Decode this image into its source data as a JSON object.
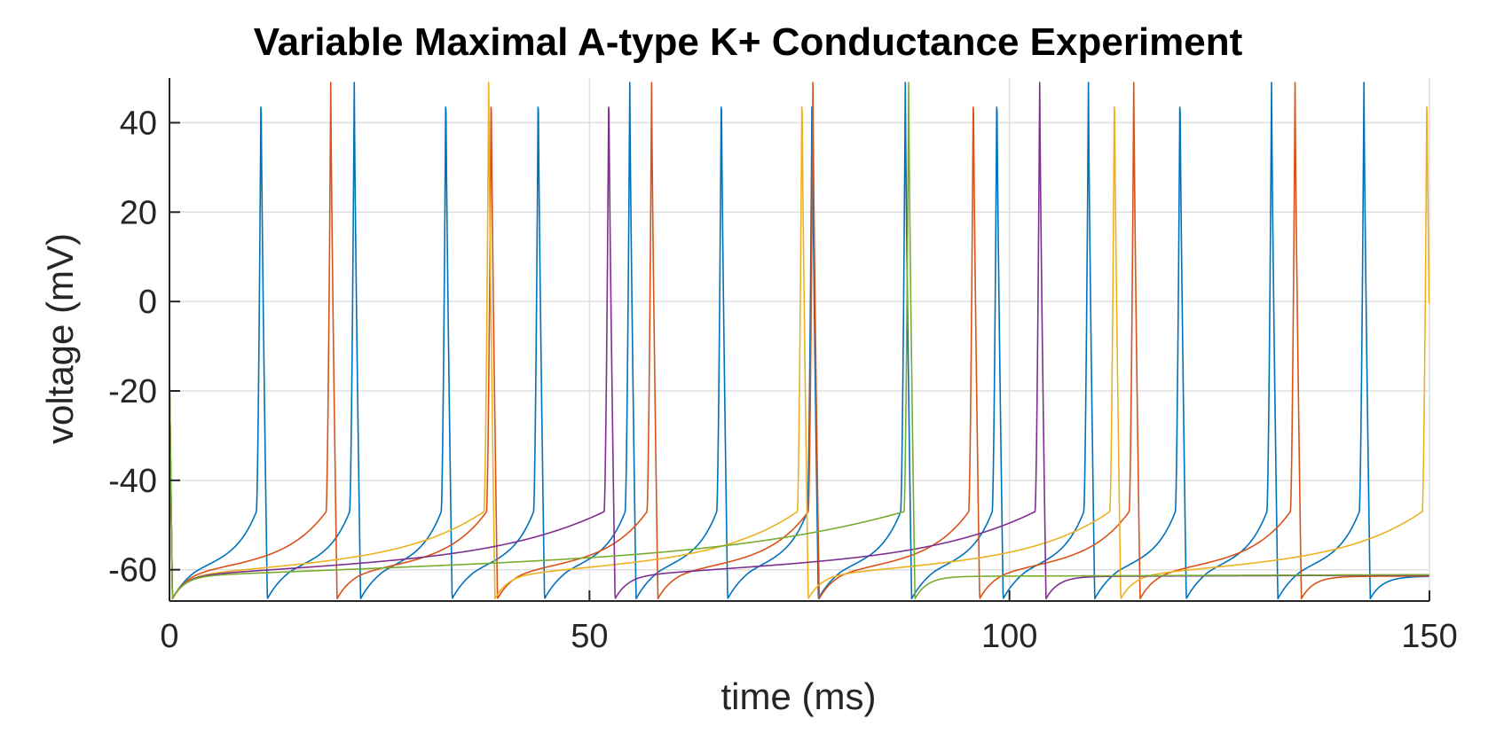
{
  "chart_data": {
    "type": "line",
    "title": "Variable Maximal A-type K+ Conductance Experiment",
    "xlabel": "time (ms)",
    "ylabel": "voltage (mV)",
    "xlim": [
      0,
      150
    ],
    "ylim": [
      -67,
      50
    ],
    "xticks": [
      0,
      50,
      100,
      150
    ],
    "yticks": [
      -60,
      -40,
      -20,
      0,
      20,
      40
    ],
    "grid": true,
    "legend": "none",
    "v_rest_min": -66.5,
    "v_peak": 49,
    "series": [
      {
        "color": "#0072BD",
        "spike_times": [
          10.9,
          22.0,
          32.9,
          43.9,
          54.8,
          65.7,
          76.5,
          87.6,
          98.5,
          109.4,
          120.3,
          131.2,
          142.2
        ],
        "start_v": -62
      },
      {
        "color": "#D95319",
        "spike_times": [
          19.2,
          38.3,
          57.4,
          76.6,
          95.7,
          114.8,
          134.0
        ],
        "start_v": -61.5
      },
      {
        "color": "#EDB120",
        "spike_times": [
          38.0,
          75.3,
          112.5,
          149.7
        ],
        "start_v": -60.5
      },
      {
        "color": "#7E2F8E",
        "spike_times": [
          52.3,
          103.6
        ],
        "start_v": -59.7
      },
      {
        "color": "#77AC30",
        "spike_times": [
          88.0
        ],
        "start_v": -60.0
      }
    ]
  }
}
